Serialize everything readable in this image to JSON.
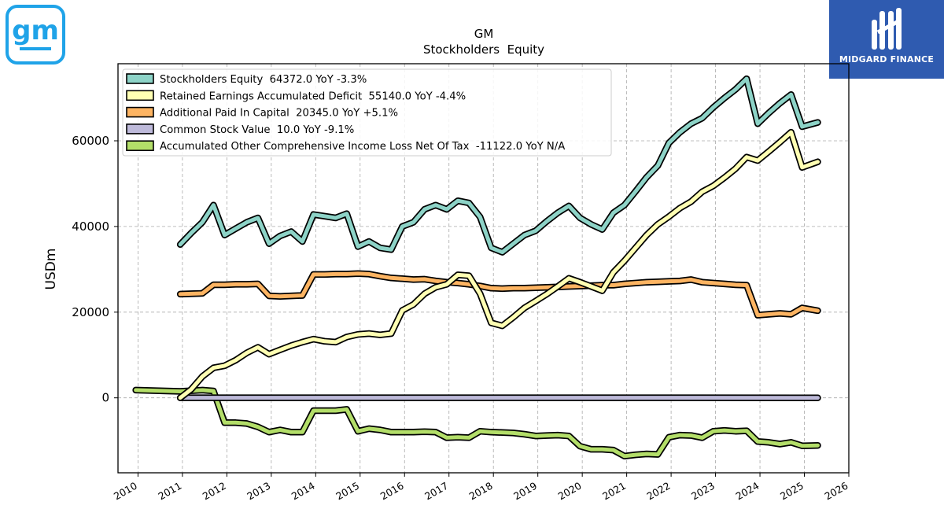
{
  "brand": {
    "left_logo_text": "gm",
    "right_logo_text": "MIDGARD FINANCE",
    "left_logo_color": "#1fa3e8",
    "right_logo_bg": "#2f5bb0"
  },
  "chart_data": {
    "type": "line",
    "title": "GM",
    "subtitle": "Stockholders  Equity",
    "ylabel": "USDm",
    "xlabel": "",
    "xlim": [
      2009.55,
      2026.0
    ],
    "ylim": [
      -17500,
      78000
    ],
    "x_ticks": [
      "2010",
      "2011",
      "2012",
      "2013",
      "2014",
      "2015",
      "2016",
      "2017",
      "2018",
      "2019",
      "2020",
      "2021",
      "2022",
      "2023",
      "2024",
      "2025",
      "2026"
    ],
    "y_ticks": [
      0,
      20000,
      40000,
      60000
    ],
    "grid": true,
    "legend_position": "top-left",
    "series": [
      {
        "name": "Stockholders Equity  64372.0 YoY -3.3%",
        "color": "#8dd3c7",
        "points": [
          [
            2010.95,
            35800
          ],
          [
            2011.2,
            38500
          ],
          [
            2011.45,
            41000
          ],
          [
            2011.7,
            45000
          ],
          [
            2011.95,
            38000
          ],
          [
            2012.2,
            39500
          ],
          [
            2012.45,
            41000
          ],
          [
            2012.7,
            42000
          ],
          [
            2012.95,
            36000
          ],
          [
            2013.2,
            37800
          ],
          [
            2013.45,
            38800
          ],
          [
            2013.7,
            36500
          ],
          [
            2013.95,
            42800
          ],
          [
            2014.2,
            42400
          ],
          [
            2014.45,
            42000
          ],
          [
            2014.7,
            43000
          ],
          [
            2014.95,
            35300
          ],
          [
            2015.2,
            36500
          ],
          [
            2015.45,
            35000
          ],
          [
            2015.7,
            34600
          ],
          [
            2015.95,
            40000
          ],
          [
            2016.2,
            41000
          ],
          [
            2016.45,
            44000
          ],
          [
            2016.7,
            45000
          ],
          [
            2016.95,
            44000
          ],
          [
            2017.2,
            46000
          ],
          [
            2017.45,
            45500
          ],
          [
            2017.7,
            42200
          ],
          [
            2017.95,
            35000
          ],
          [
            2018.2,
            34000
          ],
          [
            2018.45,
            36000
          ],
          [
            2018.7,
            38000
          ],
          [
            2018.95,
            39000
          ],
          [
            2019.2,
            41200
          ],
          [
            2019.45,
            43200
          ],
          [
            2019.7,
            44800
          ],
          [
            2019.95,
            42000
          ],
          [
            2020.2,
            40500
          ],
          [
            2020.45,
            39300
          ],
          [
            2020.7,
            43200
          ],
          [
            2020.95,
            45000
          ],
          [
            2021.2,
            48200
          ],
          [
            2021.45,
            51500
          ],
          [
            2021.7,
            54200
          ],
          [
            2021.95,
            59500
          ],
          [
            2022.2,
            62000
          ],
          [
            2022.45,
            64000
          ],
          [
            2022.7,
            65300
          ],
          [
            2022.95,
            67800
          ],
          [
            2023.2,
            70000
          ],
          [
            2023.45,
            72000
          ],
          [
            2023.7,
            74500
          ],
          [
            2023.95,
            64000
          ],
          [
            2024.2,
            66500
          ],
          [
            2024.45,
            68800
          ],
          [
            2024.7,
            70800
          ],
          [
            2024.95,
            63300
          ],
          [
            2025.3,
            64300
          ]
        ]
      },
      {
        "name": "Retained Earnings Accumulated Deficit  55140.0 YoY -4.4%",
        "color": "#ffffb3",
        "points": [
          [
            2010.95,
            0
          ],
          [
            2011.2,
            2000
          ],
          [
            2011.45,
            5000
          ],
          [
            2011.7,
            7000
          ],
          [
            2011.95,
            7500
          ],
          [
            2012.2,
            8800
          ],
          [
            2012.45,
            10500
          ],
          [
            2012.7,
            11800
          ],
          [
            2012.95,
            10200
          ],
          [
            2013.2,
            11200
          ],
          [
            2013.45,
            12200
          ],
          [
            2013.7,
            13000
          ],
          [
            2013.95,
            13700
          ],
          [
            2014.2,
            13200
          ],
          [
            2014.45,
            13000
          ],
          [
            2014.7,
            14200
          ],
          [
            2014.95,
            14800
          ],
          [
            2015.2,
            15000
          ],
          [
            2015.45,
            14700
          ],
          [
            2015.7,
            15000
          ],
          [
            2015.95,
            20400
          ],
          [
            2016.2,
            21800
          ],
          [
            2016.45,
            24300
          ],
          [
            2016.7,
            25800
          ],
          [
            2016.95,
            26500
          ],
          [
            2017.2,
            28700
          ],
          [
            2017.45,
            28500
          ],
          [
            2017.7,
            24300
          ],
          [
            2017.95,
            17500
          ],
          [
            2018.2,
            16800
          ],
          [
            2018.45,
            18800
          ],
          [
            2018.7,
            21000
          ],
          [
            2018.95,
            22600
          ],
          [
            2019.2,
            24200
          ],
          [
            2019.45,
            26000
          ],
          [
            2019.7,
            27900
          ],
          [
            2019.95,
            27000
          ],
          [
            2020.2,
            26000
          ],
          [
            2020.45,
            25000
          ],
          [
            2020.7,
            29300
          ],
          [
            2020.95,
            32000
          ],
          [
            2021.2,
            35000
          ],
          [
            2021.45,
            38000
          ],
          [
            2021.7,
            40500
          ],
          [
            2021.95,
            42300
          ],
          [
            2022.2,
            44300
          ],
          [
            2022.45,
            45800
          ],
          [
            2022.7,
            48100
          ],
          [
            2022.95,
            49500
          ],
          [
            2023.2,
            51400
          ],
          [
            2023.45,
            53500
          ],
          [
            2023.7,
            56200
          ],
          [
            2023.95,
            55400
          ],
          [
            2024.2,
            57500
          ],
          [
            2024.45,
            59700
          ],
          [
            2024.7,
            62000
          ],
          [
            2024.95,
            53800
          ],
          [
            2025.3,
            55100
          ]
        ]
      },
      {
        "name": "Additional Paid In Capital  20345.0 YoY +5.1%",
        "color": "#fdb462",
        "points": [
          [
            2010.95,
            24200
          ],
          [
            2011.2,
            24300
          ],
          [
            2011.45,
            24400
          ],
          [
            2011.7,
            26400
          ],
          [
            2011.95,
            26400
          ],
          [
            2012.2,
            26500
          ],
          [
            2012.45,
            26500
          ],
          [
            2012.7,
            26600
          ],
          [
            2012.95,
            23800
          ],
          [
            2013.2,
            23700
          ],
          [
            2013.45,
            23800
          ],
          [
            2013.7,
            23900
          ],
          [
            2013.95,
            28800
          ],
          [
            2014.2,
            28800
          ],
          [
            2014.45,
            28900
          ],
          [
            2014.7,
            28900
          ],
          [
            2014.95,
            29000
          ],
          [
            2015.2,
            28900
          ],
          [
            2015.45,
            28400
          ],
          [
            2015.7,
            28000
          ],
          [
            2015.95,
            27800
          ],
          [
            2016.2,
            27600
          ],
          [
            2016.45,
            27700
          ],
          [
            2016.7,
            27300
          ],
          [
            2016.95,
            27000
          ],
          [
            2017.2,
            26800
          ],
          [
            2017.45,
            26500
          ],
          [
            2017.7,
            26100
          ],
          [
            2017.95,
            25600
          ],
          [
            2018.2,
            25500
          ],
          [
            2018.45,
            25600
          ],
          [
            2018.7,
            25600
          ],
          [
            2018.95,
            25700
          ],
          [
            2019.2,
            25800
          ],
          [
            2019.45,
            25900
          ],
          [
            2019.7,
            26000
          ],
          [
            2019.95,
            26100
          ],
          [
            2020.2,
            26200
          ],
          [
            2020.45,
            26300
          ],
          [
            2020.7,
            26300
          ],
          [
            2020.95,
            26600
          ],
          [
            2021.2,
            26800
          ],
          [
            2021.45,
            27000
          ],
          [
            2021.7,
            27100
          ],
          [
            2021.95,
            27200
          ],
          [
            2022.2,
            27300
          ],
          [
            2022.45,
            27600
          ],
          [
            2022.7,
            27000
          ],
          [
            2022.95,
            26800
          ],
          [
            2023.2,
            26600
          ],
          [
            2023.45,
            26400
          ],
          [
            2023.7,
            26300
          ],
          [
            2023.95,
            19300
          ],
          [
            2024.2,
            19500
          ],
          [
            2024.45,
            19700
          ],
          [
            2024.7,
            19500
          ],
          [
            2024.95,
            21000
          ],
          [
            2025.3,
            20345
          ]
        ]
      },
      {
        "name": "Common Stock Value  10.0 YoY -9.1%",
        "color": "#bebada",
        "points": [
          [
            2010.95,
            17
          ],
          [
            2025.3,
            10
          ]
        ]
      },
      {
        "name": "Accumulated Other Comprehensive Income Loss Net Of Tax  -11122.0 YoY N/A",
        "color": "#b3de69",
        "points": [
          [
            2009.95,
            1800
          ],
          [
            2010.95,
            1500
          ],
          [
            2011.45,
            1800
          ],
          [
            2011.7,
            1600
          ],
          [
            2011.95,
            -5800
          ],
          [
            2012.2,
            -5800
          ],
          [
            2012.45,
            -6000
          ],
          [
            2012.7,
            -6800
          ],
          [
            2012.95,
            -8000
          ],
          [
            2013.2,
            -7500
          ],
          [
            2013.45,
            -8000
          ],
          [
            2013.7,
            -8000
          ],
          [
            2013.95,
            -3000
          ],
          [
            2014.2,
            -3000
          ],
          [
            2014.45,
            -3000
          ],
          [
            2014.7,
            -2700
          ],
          [
            2014.95,
            -7800
          ],
          [
            2015.2,
            -7200
          ],
          [
            2015.45,
            -7500
          ],
          [
            2015.7,
            -8000
          ],
          [
            2015.95,
            -8000
          ],
          [
            2016.2,
            -8000
          ],
          [
            2016.45,
            -7900
          ],
          [
            2016.7,
            -8000
          ],
          [
            2016.95,
            -9300
          ],
          [
            2017.2,
            -9200
          ],
          [
            2017.45,
            -9300
          ],
          [
            2017.7,
            -7800
          ],
          [
            2017.95,
            -8000
          ],
          [
            2018.2,
            -8100
          ],
          [
            2018.45,
            -8200
          ],
          [
            2018.7,
            -8500
          ],
          [
            2018.95,
            -8900
          ],
          [
            2019.2,
            -8800
          ],
          [
            2019.45,
            -8700
          ],
          [
            2019.7,
            -8900
          ],
          [
            2019.95,
            -11300
          ],
          [
            2020.2,
            -12000
          ],
          [
            2020.45,
            -12000
          ],
          [
            2020.7,
            -12200
          ],
          [
            2020.95,
            -13600
          ],
          [
            2021.2,
            -13300
          ],
          [
            2021.45,
            -13100
          ],
          [
            2021.7,
            -13200
          ],
          [
            2021.95,
            -9200
          ],
          [
            2022.2,
            -8700
          ],
          [
            2022.45,
            -8800
          ],
          [
            2022.7,
            -9300
          ],
          [
            2022.95,
            -7800
          ],
          [
            2023.2,
            -7600
          ],
          [
            2023.45,
            -7800
          ],
          [
            2023.7,
            -7700
          ],
          [
            2023.95,
            -10200
          ],
          [
            2024.2,
            -10400
          ],
          [
            2024.45,
            -10800
          ],
          [
            2024.7,
            -10400
          ],
          [
            2024.95,
            -11200
          ],
          [
            2025.3,
            -11100
          ]
        ]
      }
    ]
  }
}
